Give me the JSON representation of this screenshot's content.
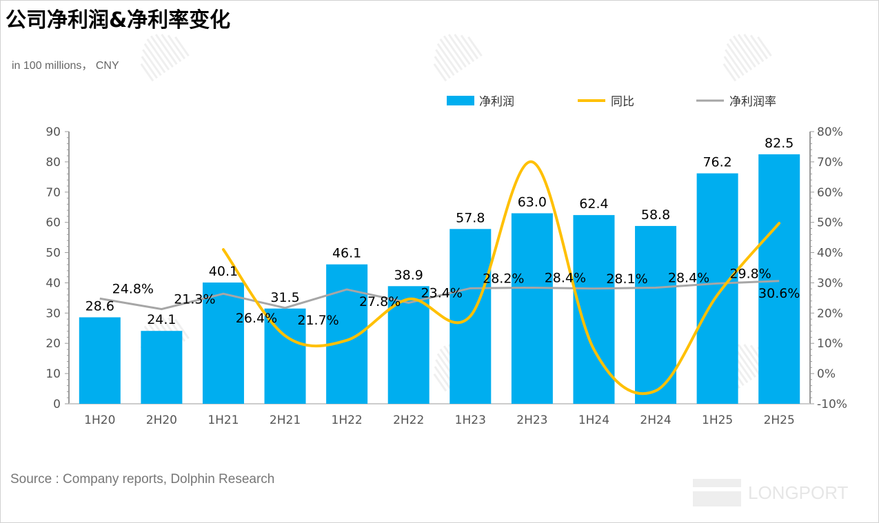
{
  "title": "公司净利润&净利率变化",
  "unit": "in 100 millions， CNY",
  "source": "Source : Company reports, Dolphin Research",
  "watermark": "DolphinResearch",
  "logo": "LONGPORT",
  "chart_data": {
    "type": "bar+line",
    "categories": [
      "1H20",
      "2H20",
      "1H21",
      "2H21",
      "1H22",
      "2H22",
      "1H23",
      "2H23",
      "1H24",
      "2H24",
      "1H25",
      "2H25"
    ],
    "series": [
      {
        "name": "净利润",
        "type": "bar",
        "axis": "left",
        "color": "#00AEEF",
        "values": [
          28.6,
          24.1,
          40.1,
          31.5,
          46.1,
          38.9,
          57.8,
          63.0,
          62.4,
          58.8,
          76.2,
          82.5
        ],
        "labels": [
          "28.6",
          "24.1",
          "40.1",
          "31.5",
          "46.1",
          "38.9",
          "57.8",
          "63.0",
          "62.4",
          "58.8",
          "76.2",
          "82.5"
        ]
      },
      {
        "name": "同比",
        "type": "line",
        "axis": "right",
        "color": "#FFC000",
        "smooth": true,
        "values": [
          null,
          null,
          41,
          12.5,
          11,
          24.6,
          19,
          70,
          8,
          -5.7,
          26,
          49.7
        ]
      },
      {
        "name": "净利润率",
        "type": "line",
        "axis": "right",
        "color": "#A6A6A6",
        "values": [
          24.8,
          21.3,
          26.4,
          21.7,
          27.8,
          23.4,
          28.2,
          28.4,
          28.1,
          28.4,
          29.8,
          30.6
        ],
        "labels": [
          "24.8%",
          "21.3%",
          "26.4%",
          "21.7%",
          "27.8%",
          "23.4%",
          "28.2%",
          "28.4%",
          "28.1%",
          "28.4%",
          "29.8%",
          "30.6%"
        ]
      }
    ],
    "yleft": {
      "lim": [
        0,
        90
      ],
      "ticks": [
        "0",
        "10",
        "20",
        "30",
        "40",
        "50",
        "60",
        "70",
        "80",
        "90"
      ]
    },
    "yright": {
      "lim": [
        -10,
        80
      ],
      "ticks": [
        "-10%",
        "0%",
        "10%",
        "20%",
        "30%",
        "40%",
        "50%",
        "60%",
        "70%",
        "80%"
      ]
    },
    "legend": "top-right",
    "grid": false
  }
}
